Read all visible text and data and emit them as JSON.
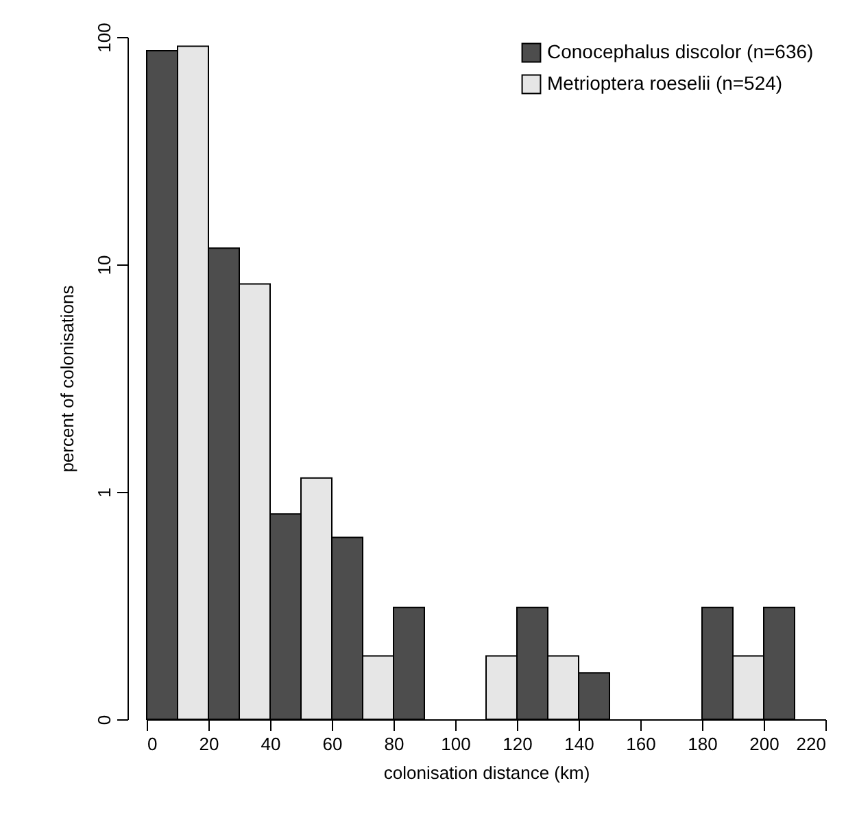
{
  "chart_data": {
    "type": "histogram",
    "xlabel": "colonisation distance (km)",
    "ylabel": "percent of colonisations",
    "bins": [
      0,
      20,
      40,
      60,
      80,
      100,
      120,
      140,
      160,
      180,
      200,
      220
    ],
    "series": [
      {
        "name": "Conocephalus discolor  (n=636)",
        "color": "#4d4d4d",
        "values": [
          87,
          11.8,
          0.8,
          0.63,
          0.31,
          null,
          0.31,
          0.16,
          null,
          0.31,
          0.31
        ]
      },
      {
        "name": "Metrioptera roeselii  (n=524)",
        "color": "#e6e6e6",
        "values": [
          91,
          8.2,
          1.15,
          0.19,
          null,
          0.19,
          0.19,
          null,
          null,
          0.19,
          null
        ]
      }
    ],
    "xlim": [
      0,
      220
    ],
    "xticks": [
      0,
      20,
      40,
      60,
      80,
      100,
      120,
      140,
      160,
      180,
      200,
      220
    ],
    "ylim": [
      0.1,
      100
    ],
    "yticks": [
      {
        "value": 0.1,
        "label": "0"
      },
      1,
      10,
      100
    ],
    "log": "y",
    "grid": false,
    "legend": "top right"
  }
}
